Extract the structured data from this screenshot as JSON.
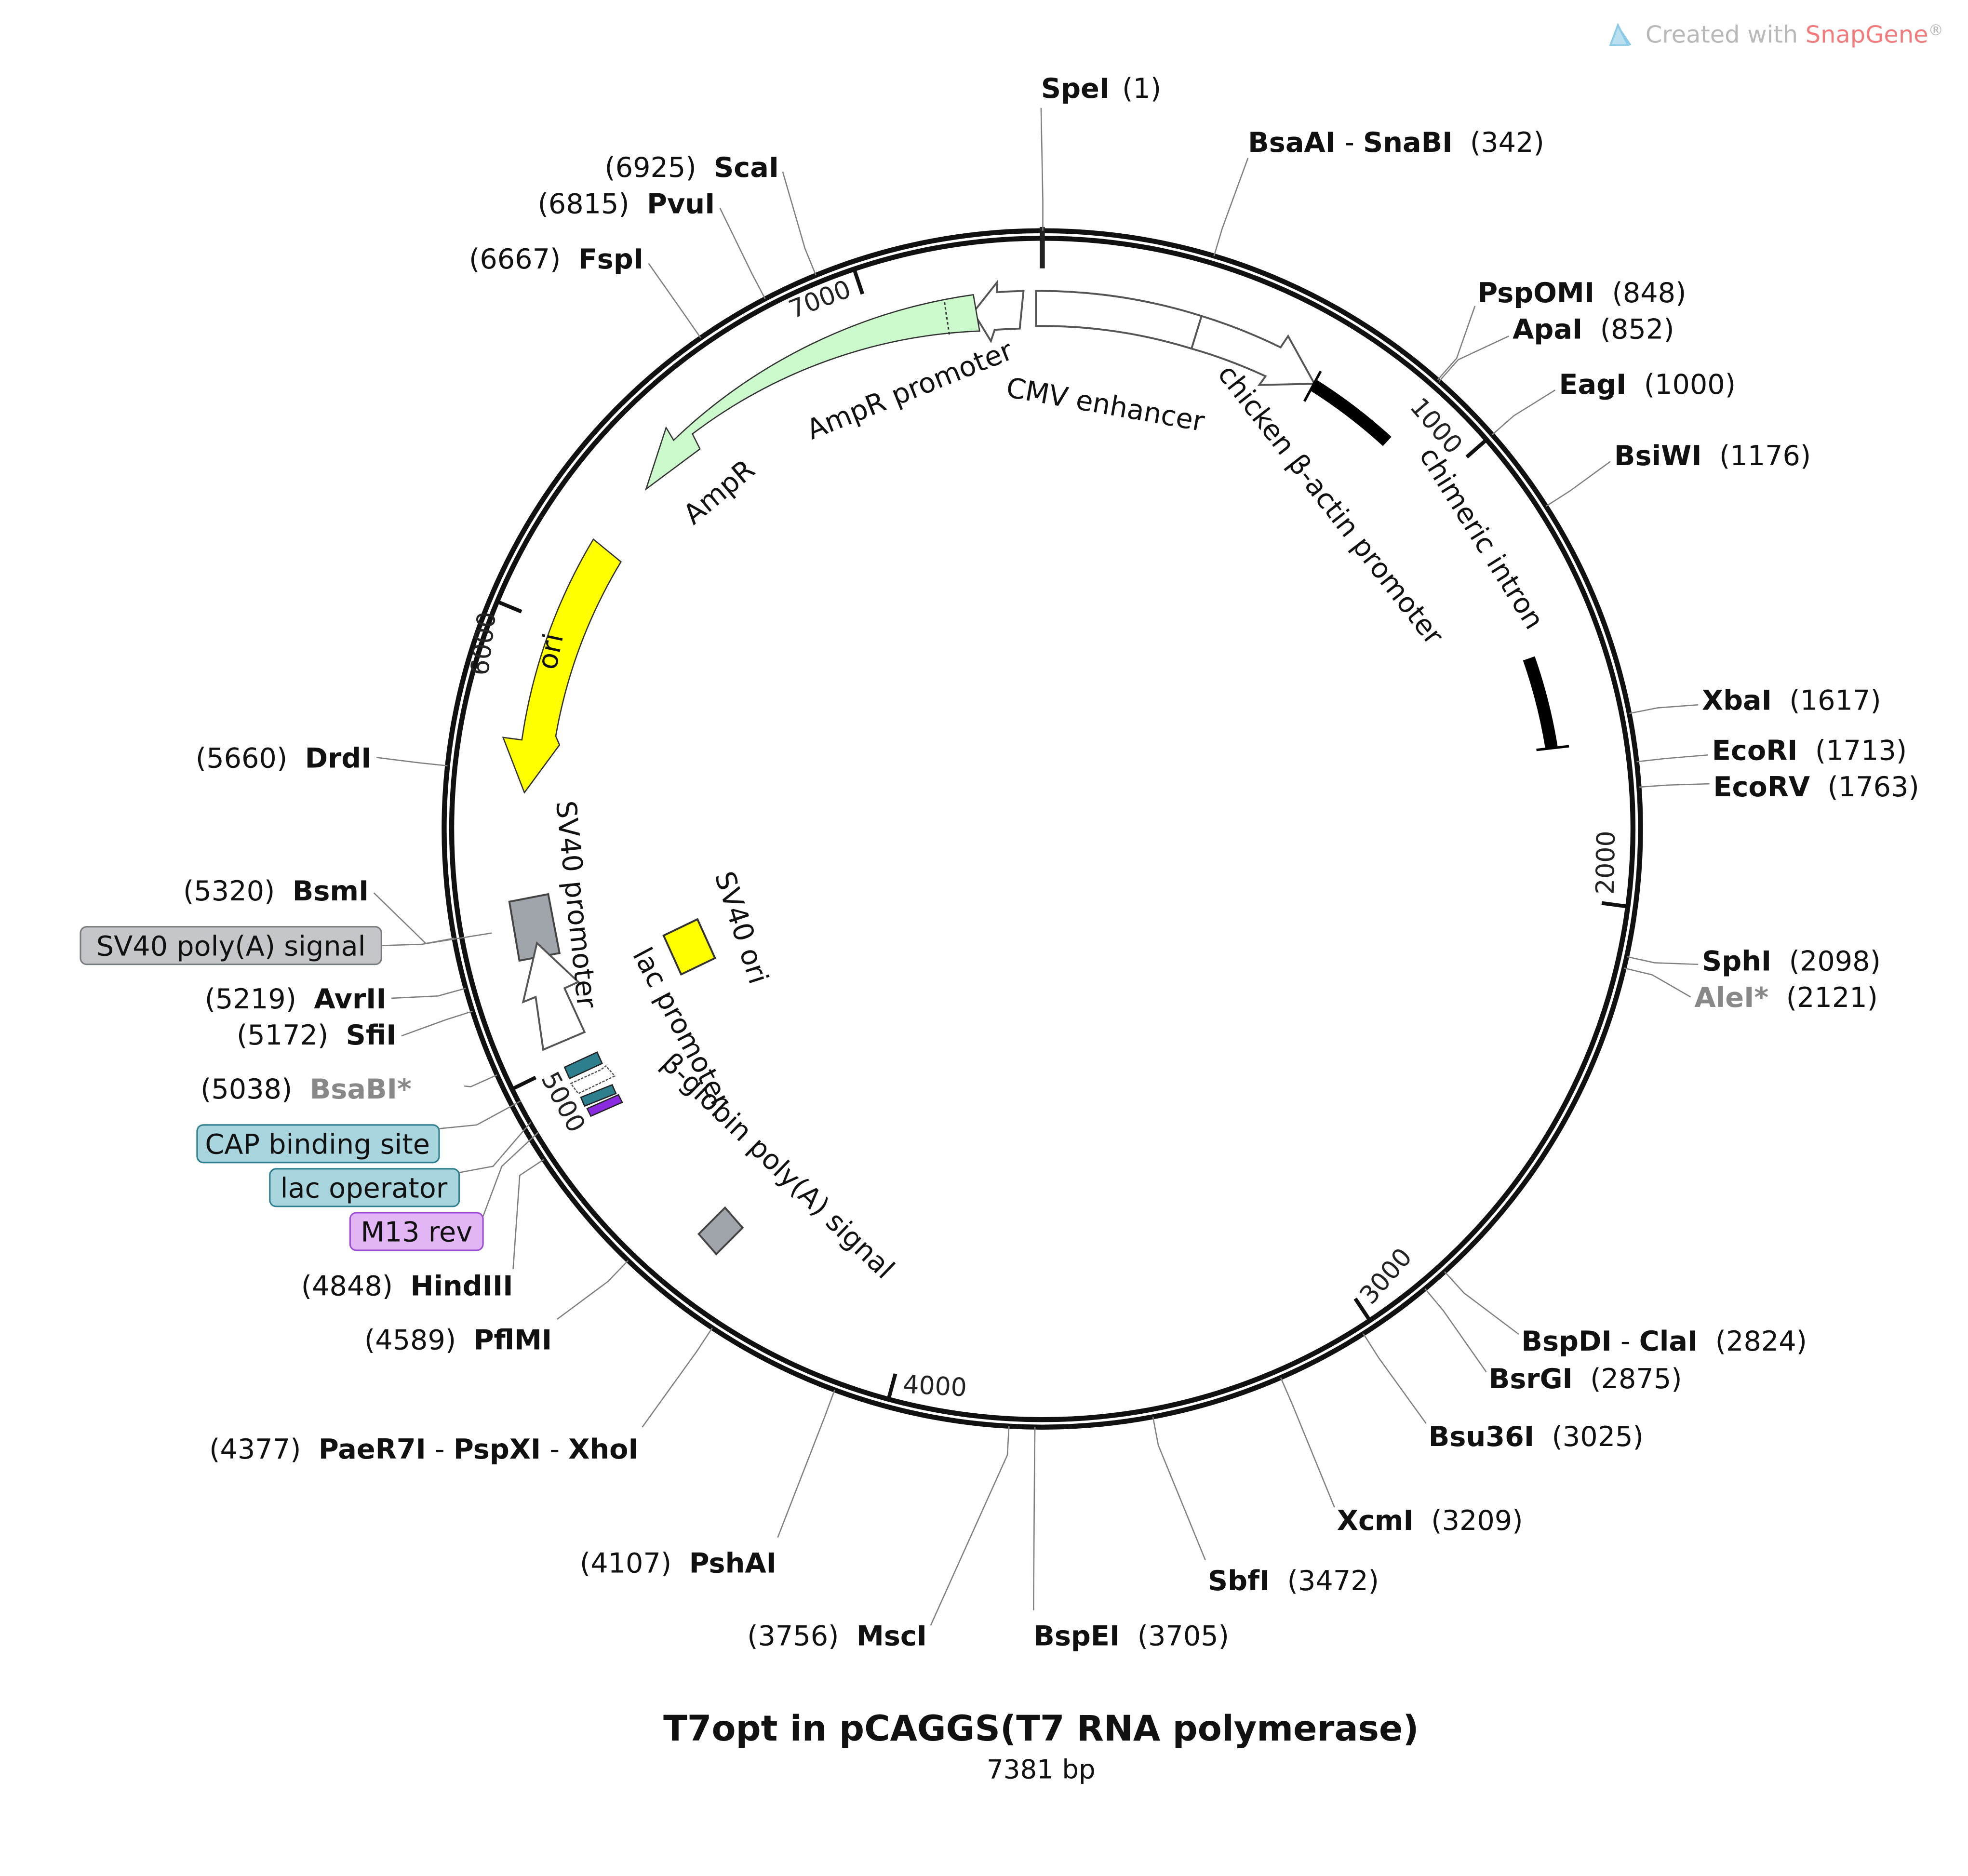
{
  "plasmid": {
    "name": "T7opt in pCAGGS(T7 RNA polymerase)",
    "length_bp": 7381,
    "length_label": "7381 bp"
  },
  "watermark": {
    "prefix": "Created with ",
    "brand": "SnapGene",
    "suffix": "®"
  },
  "ticks": [
    "1000",
    "2000",
    "3000",
    "4000",
    "5000",
    "6000",
    "7000"
  ],
  "sites": [
    {
      "id": "spei",
      "name": "SpeI",
      "pos": 1,
      "pos_label": "(1)"
    },
    {
      "id": "bsaai",
      "name": "BsaAI",
      "name2": "SnaBI",
      "pos": 342,
      "pos_label": "(342)"
    },
    {
      "id": "pspomi",
      "name": "PspOMI",
      "pos": 848,
      "pos_label": "(848)"
    },
    {
      "id": "apai",
      "name": "ApaI",
      "pos": 852,
      "pos_label": "(852)"
    },
    {
      "id": "eagi",
      "name": "EagI",
      "pos": 1000,
      "pos_label": "(1000)"
    },
    {
      "id": "bsiwi",
      "name": "BsiWI",
      "pos": 1176,
      "pos_label": "(1176)"
    },
    {
      "id": "xbai",
      "name": "XbaI",
      "pos": 1617,
      "pos_label": "(1617)"
    },
    {
      "id": "ecori",
      "name": "EcoRI",
      "pos": 1713,
      "pos_label": "(1713)"
    },
    {
      "id": "ecorv",
      "name": "EcoRV",
      "pos": 1763,
      "pos_label": "(1763)"
    },
    {
      "id": "sphi",
      "name": "SphI",
      "pos": 2098,
      "pos_label": "(2098)"
    },
    {
      "id": "alei",
      "name": "AleI*",
      "pos": 2121,
      "pos_label": "(2121)",
      "gray": true
    },
    {
      "id": "bspdi",
      "name": "BspDI",
      "name2": "ClaI",
      "pos": 2824,
      "pos_label": "(2824)"
    },
    {
      "id": "bsrgi",
      "name": "BsrGI",
      "pos": 2875,
      "pos_label": "(2875)"
    },
    {
      "id": "bsu36i",
      "name": "Bsu36I",
      "pos": 3025,
      "pos_label": "(3025)"
    },
    {
      "id": "xcmi",
      "name": "XcmI",
      "pos": 3209,
      "pos_label": "(3209)"
    },
    {
      "id": "sbfi",
      "name": "SbfI",
      "pos": 3472,
      "pos_label": "(3472)"
    },
    {
      "id": "bspei",
      "name": "BspEI",
      "pos": 3705,
      "pos_label": "(3705)"
    },
    {
      "id": "msci",
      "name": "MscI",
      "pos": 3756,
      "pos_label": "(3756)"
    },
    {
      "id": "pshai",
      "name": "PshAI",
      "pos": 4107,
      "pos_label": "(4107)"
    },
    {
      "id": "paer7i",
      "name": "PaeR7I",
      "name2": "PspXI",
      "name3": "XhoI",
      "pos": 4377,
      "pos_label": "(4377)"
    },
    {
      "id": "pflmi",
      "name": "PflMI",
      "pos": 4589,
      "pos_label": "(4589)"
    },
    {
      "id": "hindiii",
      "name": "HindIII",
      "pos": 4848,
      "pos_label": "(4848)"
    },
    {
      "id": "bsabi",
      "name": "BsaBI*",
      "pos": 5038,
      "pos_label": "(5038)",
      "gray": true
    },
    {
      "id": "sfii",
      "name": "SfiI",
      "pos": 5172,
      "pos_label": "(5172)"
    },
    {
      "id": "avrii",
      "name": "AvrII",
      "pos": 5219,
      "pos_label": "(5219)"
    },
    {
      "id": "bsmi",
      "name": "BsmI",
      "pos": 5320,
      "pos_label": "(5320)"
    },
    {
      "id": "drdi",
      "name": "DrdI",
      "pos": 5660,
      "pos_label": "(5660)"
    },
    {
      "id": "fspi",
      "name": "FspI",
      "pos": 6667,
      "pos_label": "(6667)"
    },
    {
      "id": "pvui",
      "name": "PvuI",
      "pos": 6815,
      "pos_label": "(6815)"
    },
    {
      "id": "scai",
      "name": "ScaI",
      "pos": 6925,
      "pos_label": "(6925)"
    }
  ],
  "features": [
    {
      "id": "cmv-enhancer",
      "label": "CMV enhancer",
      "color": "#ffffff"
    },
    {
      "id": "chicken-actin-promoter",
      "label": "chicken β-actin promoter",
      "color": "#ffffff"
    },
    {
      "id": "chimeric-intron",
      "label": "chimeric intron",
      "color": "#000000"
    },
    {
      "id": "ampr",
      "label": "AmpR",
      "color": "#ccf9cc"
    },
    {
      "id": "ampr-promoter",
      "label": "AmpR promoter",
      "color": "#ffffff"
    },
    {
      "id": "ori",
      "label": "ori",
      "color": "#ffff00"
    },
    {
      "id": "sv40-promoter",
      "label": "SV40 promoter",
      "color": "#ffffff"
    },
    {
      "id": "sv40-ori",
      "label": "SV40 ori",
      "color": "#ffff00"
    },
    {
      "id": "lac-promoter",
      "label": "lac promoter",
      "color": "#ffffff"
    },
    {
      "id": "beta-globin-polya",
      "label": "β-globin poly(A) signal",
      "color": "#a0a4ab"
    },
    {
      "id": "sv40-polya",
      "label": "SV40 poly(A) signal",
      "color": "#a0a4ab"
    },
    {
      "id": "cap-binding-site",
      "label": "CAP binding site",
      "color": "#2e7f8e"
    },
    {
      "id": "lac-operator",
      "label": "lac operator",
      "color": "#2e7f8e"
    },
    {
      "id": "m13-rev",
      "label": "M13 rev",
      "color": "#8a2be2"
    }
  ],
  "colors": {
    "brand": "#f47b7b",
    "watermark": "#b8b8b8",
    "gray_enzyme": "#888888",
    "leader": "#808080"
  }
}
